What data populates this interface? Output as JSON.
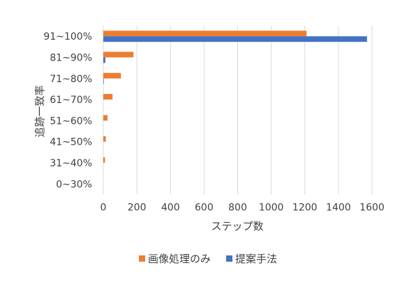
{
  "chart_data": {
    "type": "bar",
    "orientation": "horizontal",
    "categories": [
      "0~30%",
      "31~40%",
      "41~50%",
      "51~60%",
      "61~70%",
      "71~80%",
      "81~90%",
      "91~100%"
    ],
    "series": [
      {
        "name": "画像処理のみ",
        "color": "#ED7D31",
        "values": [
          0,
          10,
          15,
          25,
          55,
          105,
          180,
          1210
        ]
      },
      {
        "name": "提案手法",
        "color": "#4472C4",
        "values": [
          0,
          0,
          0,
          0,
          0,
          3,
          12,
          1570
        ]
      }
    ],
    "xlabel": "ステップ数",
    "ylabel": "追跡一致率",
    "xlim": [
      0,
      1600
    ],
    "xticks": [
      0,
      200,
      400,
      600,
      800,
      1000,
      1200,
      1400,
      1600
    ],
    "grid": "vertical",
    "legend_position": "bottom"
  }
}
